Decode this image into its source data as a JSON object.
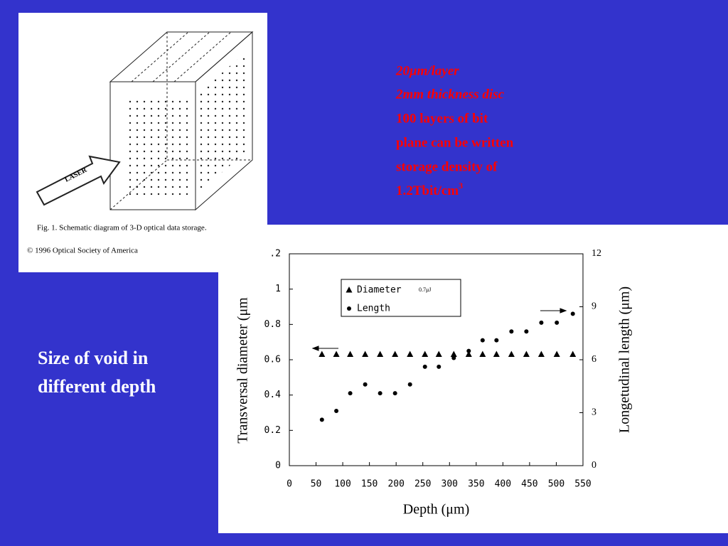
{
  "slide": {
    "notes": [
      "20μm/layer",
      "2mm thickness disc",
      "100 layers of bit",
      "plane can be written",
      "storage density of",
      "1.2Tbit/cm"
    ],
    "notes_superscript": "3",
    "caption": [
      "Size of void in",
      "different depth"
    ]
  },
  "figure": {
    "laser_label": "LASER",
    "caption": "Fig. 1.   Schematic diagram of 3-D optical data storage.",
    "credit": "© 1996 Optical Society of America"
  },
  "chart_data": {
    "type": "scatter",
    "x_label": "Depth (μm)",
    "y_label": "Transversal diameter (μm",
    "y2_label": "Longetudinal length (μm)",
    "annotation": "0.7μJ",
    "x": [
      61,
      88,
      114,
      142,
      170,
      198,
      226,
      254,
      280,
      308,
      336,
      362,
      388,
      416,
      444,
      472,
      501,
      531
    ],
    "series": [
      {
        "name": "Diameter",
        "marker": "triangle",
        "color": "#000000",
        "values": [
          0.63,
          0.63,
          0.63,
          0.63,
          0.63,
          0.63,
          0.63,
          0.63,
          0.63,
          0.63,
          0.63,
          0.63,
          0.63,
          0.63,
          0.63,
          0.63,
          0.63,
          0.63
        ]
      },
      {
        "name": "Length",
        "marker": "circle",
        "color": "#000000",
        "axis": "y2",
        "values": [
          2.6,
          3.1,
          4.1,
          4.6,
          4.1,
          4.1,
          4.6,
          5.6,
          5.6,
          6.1,
          6.5,
          7.1,
          7.1,
          7.6,
          7.6,
          8.1,
          8.1,
          8.6
        ]
      }
    ],
    "xlim": [
      0,
      550
    ],
    "xticks": [
      0,
      50,
      100,
      150,
      200,
      250,
      300,
      350,
      400,
      450,
      500,
      550
    ],
    "ylim": [
      0,
      1.2
    ],
    "yticks": [
      0,
      0.2,
      0.4,
      0.6,
      0.8,
      1,
      {
        "value": 1.2,
        "label": ".2"
      }
    ],
    "y2lim": [
      0,
      12
    ],
    "y2ticks": [
      0,
      3,
      6,
      9,
      12
    ]
  }
}
